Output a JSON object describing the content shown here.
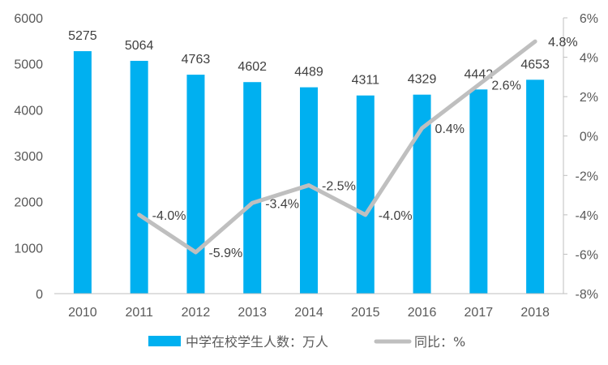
{
  "chart_data": {
    "type": "bar",
    "categories": [
      "2010",
      "2011",
      "2012",
      "2013",
      "2014",
      "2015",
      "2016",
      "2017",
      "2018"
    ],
    "series": [
      {
        "name": "中学在校学生人数：万人",
        "type": "bar",
        "axis": "left",
        "color": "#00b0f0",
        "values": [
          5275,
          5064,
          4763,
          4602,
          4489,
          4311,
          4329,
          4442,
          4653
        ],
        "labels": [
          "5275",
          "5064",
          "4763",
          "4602",
          "4489",
          "4311",
          "4329",
          "4442",
          "4653"
        ]
      },
      {
        "name": "同比：%",
        "type": "line",
        "axis": "right",
        "color": "#bfbfbf",
        "values": [
          null,
          -4.0,
          -5.9,
          -3.4,
          -2.5,
          -4.0,
          0.4,
          2.6,
          4.8
        ],
        "labels": [
          "",
          "-4.0%",
          "-5.9%",
          "-3.4%",
          "-2.5%",
          "-4.0%",
          "0.4%",
          "2.6%",
          "4.8%"
        ]
      }
    ],
    "y_left": {
      "range": [
        0,
        6000
      ],
      "ticks": [
        0,
        1000,
        2000,
        3000,
        4000,
        5000,
        6000
      ],
      "tick_labels": [
        "0",
        "1000",
        "2000",
        "3000",
        "4000",
        "5000",
        "6000"
      ]
    },
    "y_right": {
      "range": [
        -8,
        6
      ],
      "ticks": [
        -8,
        -6,
        -4,
        -2,
        0,
        2,
        4,
        6
      ],
      "tick_labels": [
        "-8%",
        "-6%",
        "-4%",
        "-2%",
        "0%",
        "2%",
        "4%",
        "6%"
      ]
    },
    "grid": false,
    "legend_position": "bottom",
    "title": "",
    "xlabel": "",
    "ylabel": ""
  }
}
